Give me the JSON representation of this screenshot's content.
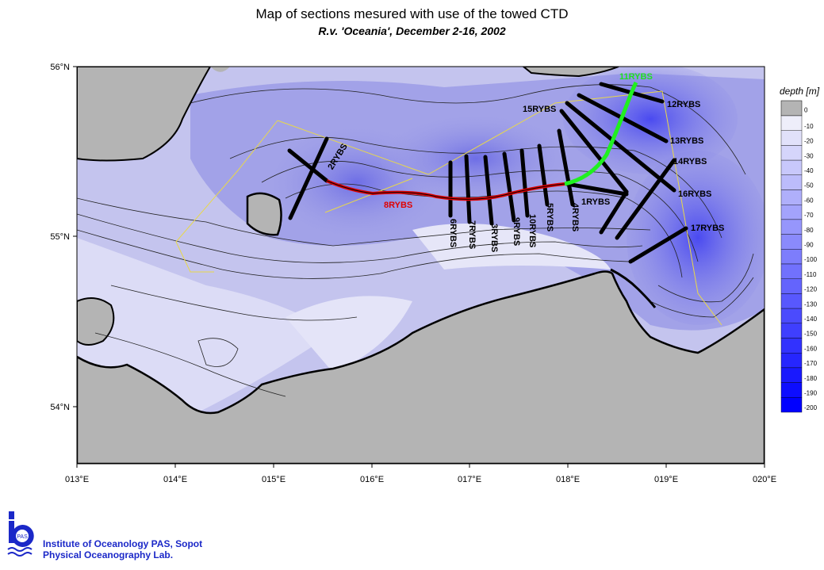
{
  "title": "Map of sections mesured with use of the towed CTD",
  "subtitle": "R.v. 'Oceania', December 2-16, 2002",
  "legend": {
    "title": "depth [m]",
    "ticks": [
      "0",
      "-10",
      "-20",
      "-30",
      "-40",
      "-50",
      "-60",
      "-70",
      "-80",
      "-90",
      "-100",
      "-110",
      "-120",
      "-130",
      "-140",
      "-150",
      "-160",
      "-170",
      "-180",
      "-190",
      "-200"
    ],
    "colors": {
      "land": "#b4b4b4",
      "shallow": "#eeeefa",
      "deep": "#0000ff"
    }
  },
  "axes": {
    "lon": [
      "013°E",
      "014°E",
      "015°E",
      "016°E",
      "017°E",
      "018°E",
      "019°E",
      "020°E"
    ],
    "lat": [
      "56°N",
      "55°N",
      "54°N"
    ]
  },
  "sections": {
    "red": "8RYBS",
    "green": "11RYBS",
    "black": [
      "2RYBS",
      "6RYBS",
      "7RYBS",
      "3RYBS",
      "9RYBS",
      "10RYBS",
      "5RYBS",
      "4RYBS",
      "1RYBS",
      "15RYBS",
      "12RYBS",
      "13RYBS",
      "14RYBS",
      "16RYBS",
      "17RYBS"
    ]
  },
  "footer": {
    "line1": "Institute of Oceanology PAS, Sopot",
    "line2": "Physical Oceanography Lab.",
    "logo_text": "PAS"
  }
}
